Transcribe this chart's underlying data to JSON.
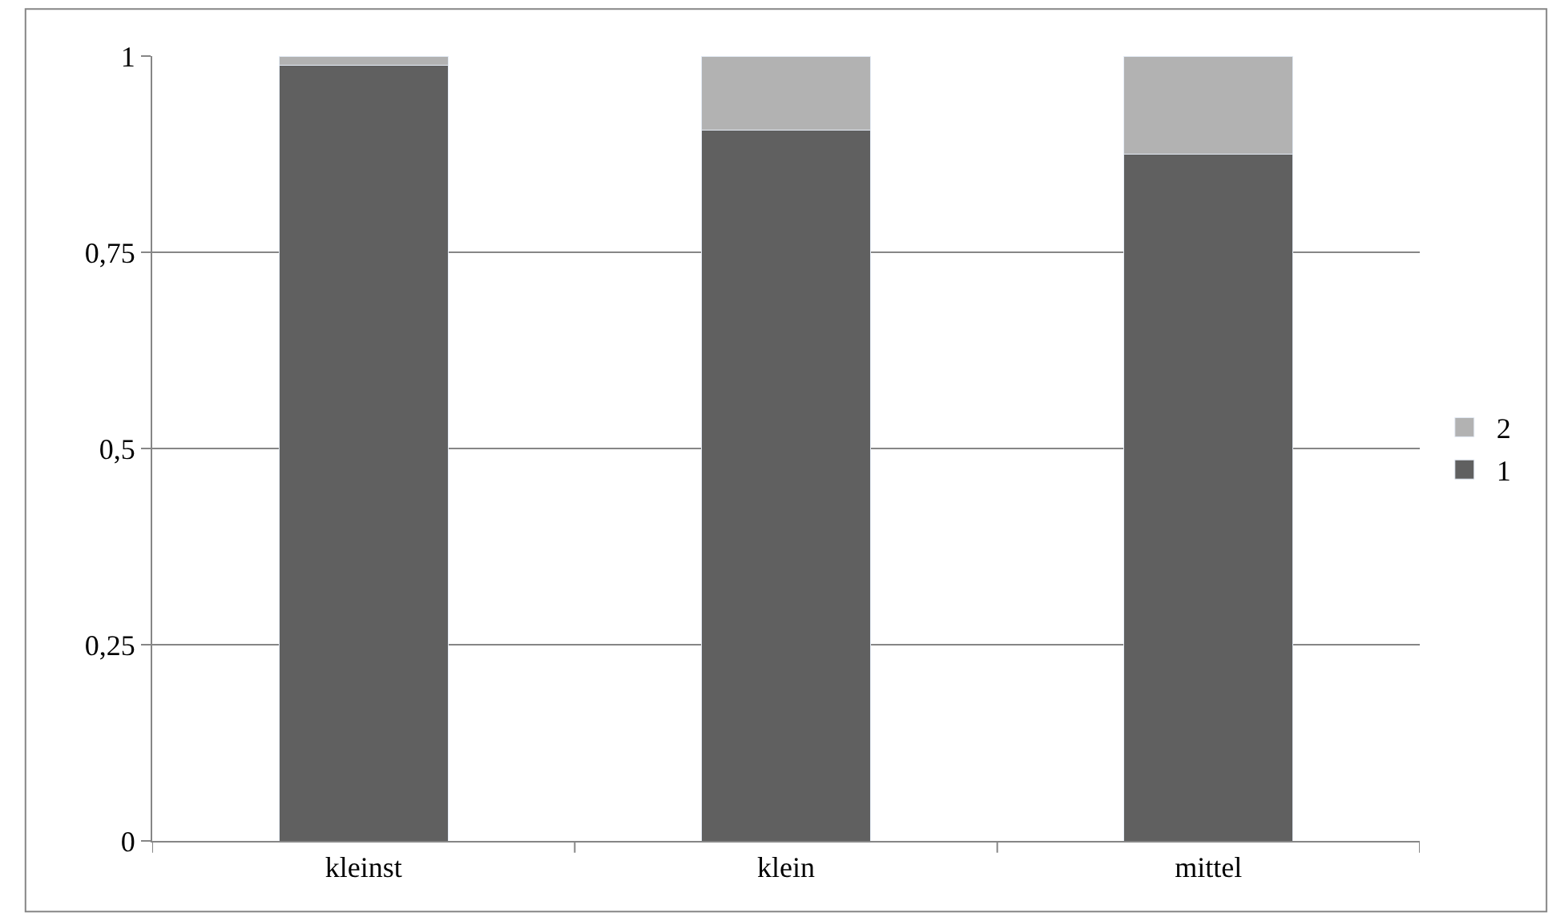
{
  "chart_data": {
    "type": "bar",
    "stacked": true,
    "categories": [
      "kleinst",
      "klein",
      "mittel"
    ],
    "series": [
      {
        "name": "1",
        "color": "#606060",
        "values": [
          0.988,
          0.906,
          0.875
        ]
      },
      {
        "name": "2",
        "color": "#b2b2b2",
        "values": [
          0.012,
          0.094,
          0.125
        ]
      }
    ],
    "ylim": [
      0,
      1
    ],
    "yticks": [
      0,
      {
        "value": 0.25,
        "label": "0,25"
      },
      {
        "value": 0.5,
        "label": "0,5"
      },
      {
        "value": 0.75,
        "label": "0,75"
      },
      1
    ],
    "grid": "y",
    "legend": "right"
  }
}
